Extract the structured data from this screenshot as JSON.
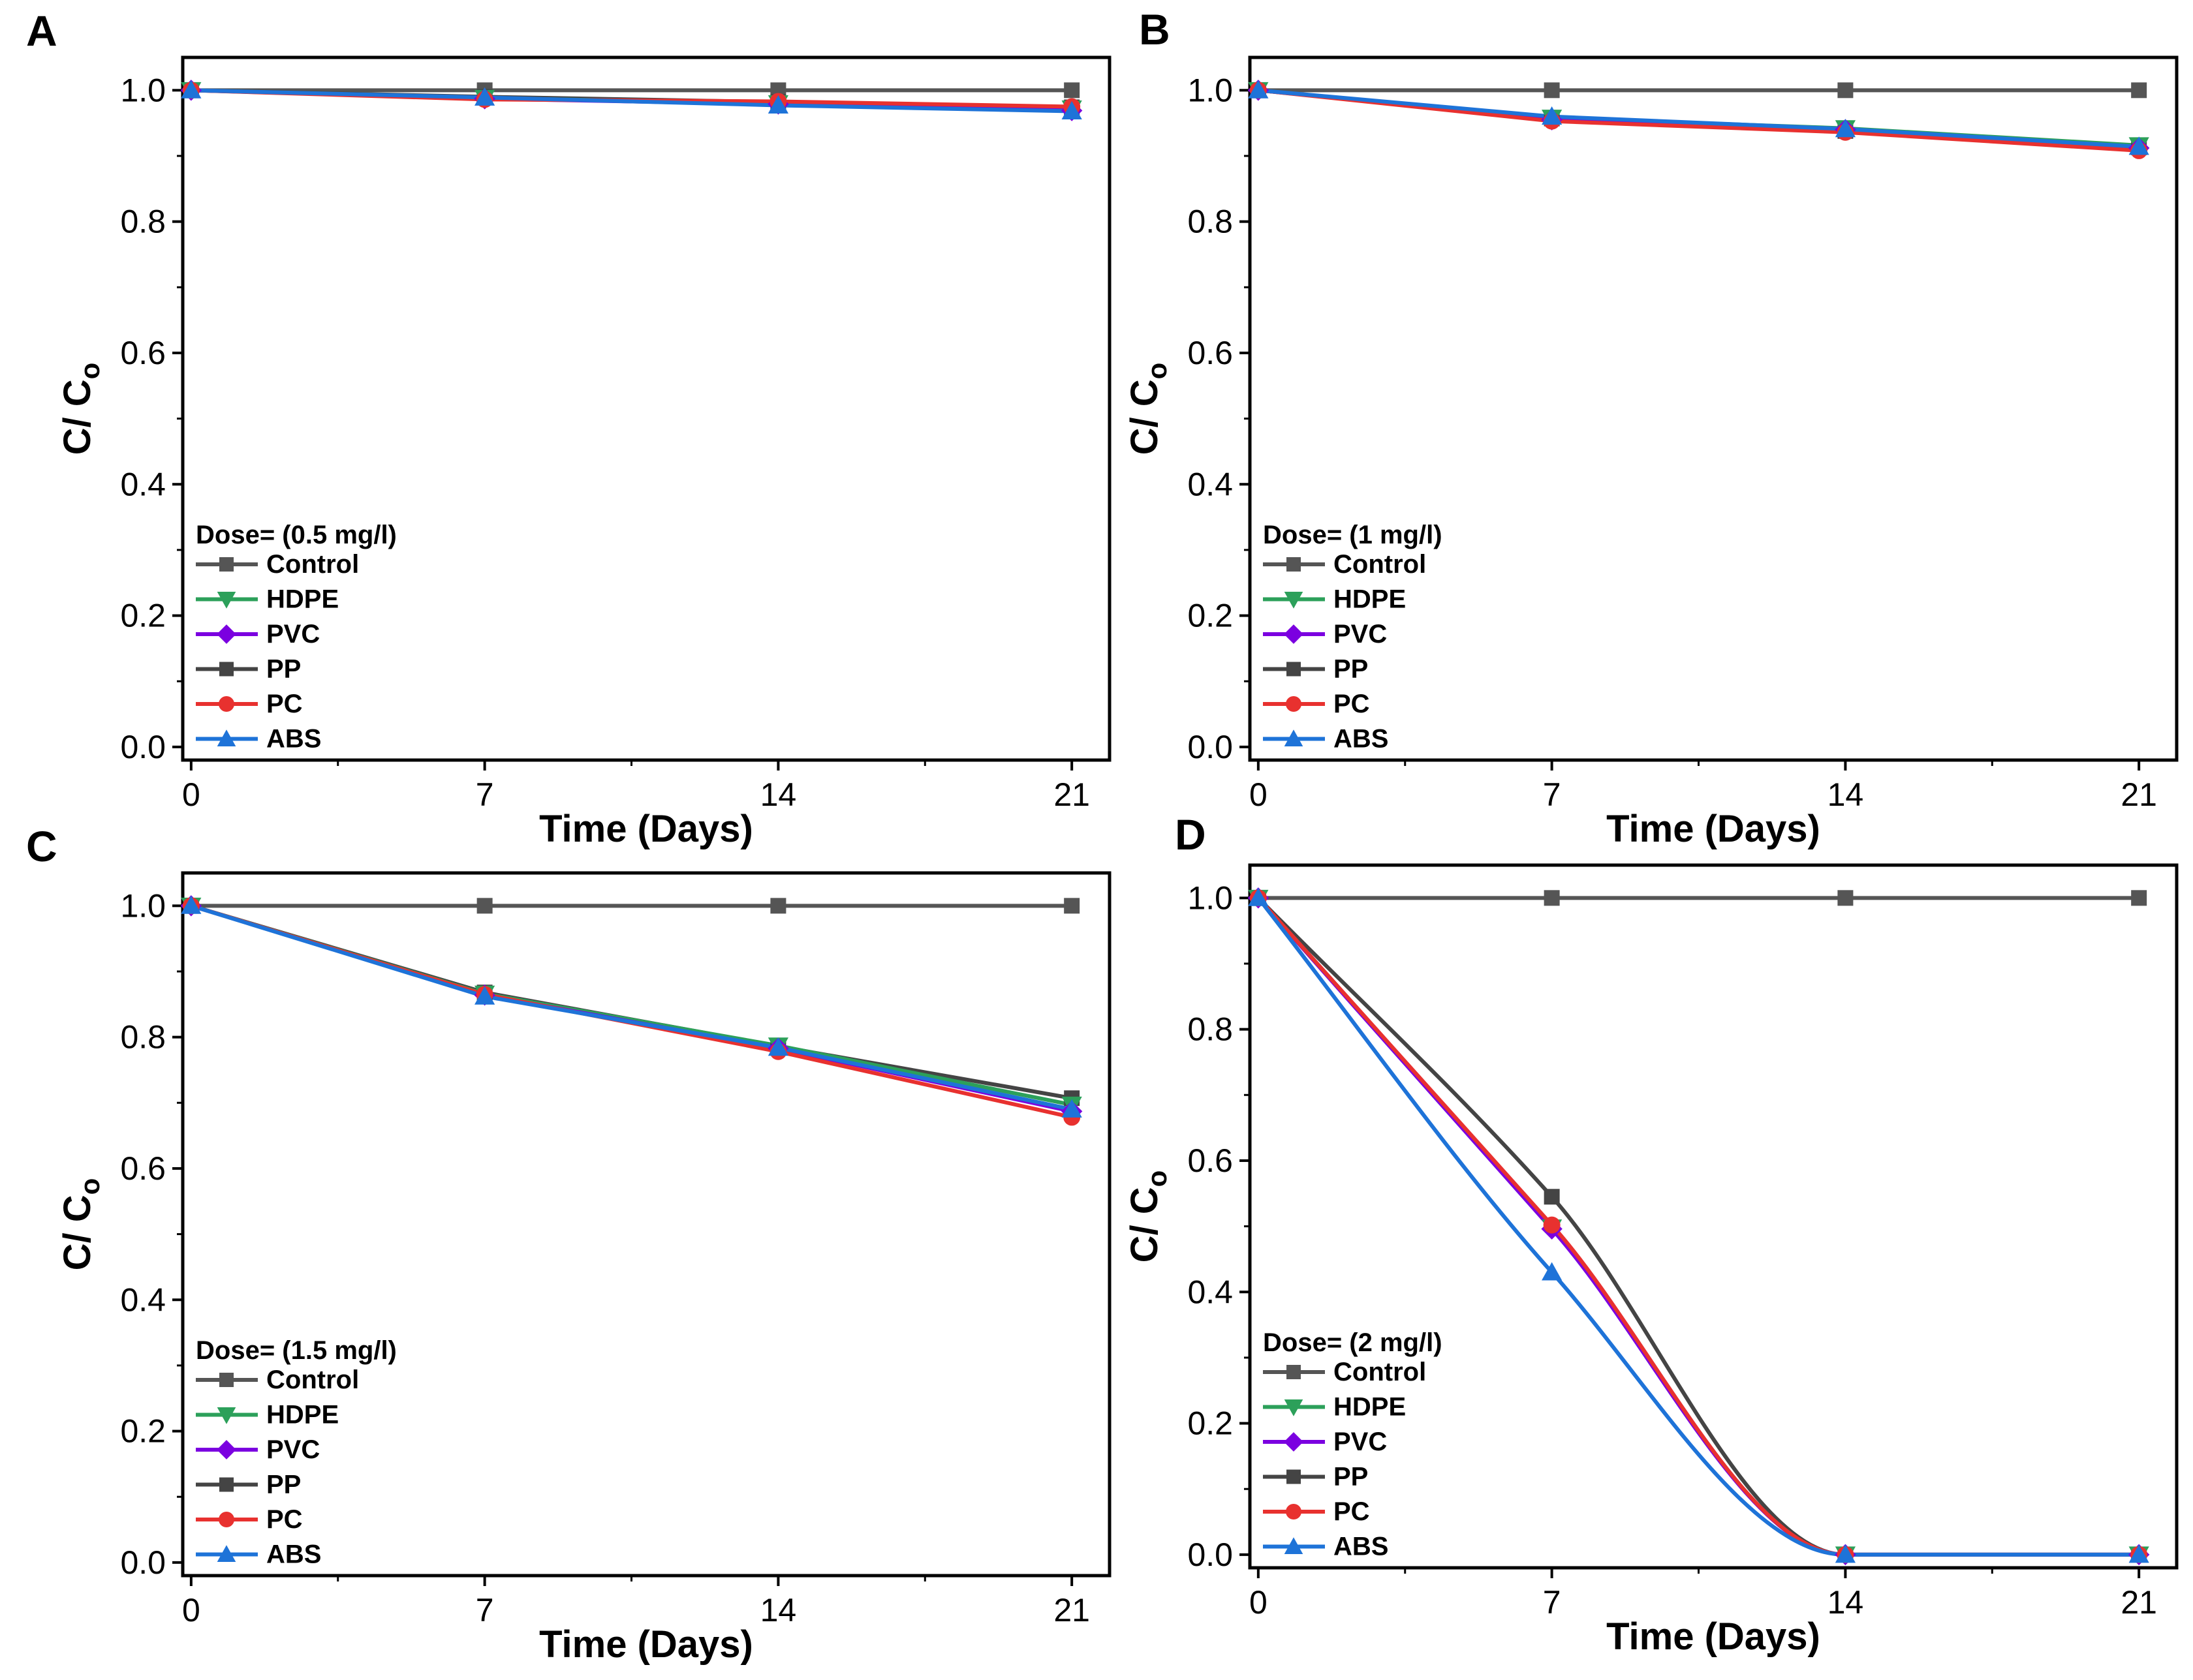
{
  "colors": {
    "Control": "#555555",
    "HDPE": "#2ca05a",
    "PVC": "#7b00e0",
    "PP": "#444444",
    "PC": "#e8312f",
    "ABS": "#1e73d8"
  },
  "series_styles": [
    {
      "name": "Control",
      "marker": "square"
    },
    {
      "name": "HDPE",
      "marker": "triangle-down"
    },
    {
      "name": "PVC",
      "marker": "diamond"
    },
    {
      "name": "PP",
      "marker": "square"
    },
    {
      "name": "PC",
      "marker": "circle"
    },
    {
      "name": "ABS",
      "marker": "triangle-up"
    }
  ],
  "chart_data": [
    {
      "panel": "A",
      "type": "line",
      "xlabel": "Time (Days)",
      "ylabel": "C/ C",
      "ylabel_sub": "o",
      "x": [
        0,
        7,
        14,
        21
      ],
      "xticks": [
        "0",
        "7",
        "14",
        "21"
      ],
      "yticks": [
        "0.0",
        "0.2",
        "0.4",
        "0.6",
        "0.8",
        "1.0"
      ],
      "xlim": [
        -0.2,
        21.9
      ],
      "ylim": [
        -0.02,
        1.05
      ],
      "curve": "linear",
      "legend_title": "Dose= (0.5 mg/l)",
      "series": [
        {
          "name": "Control",
          "values": [
            1.0,
            1.0,
            1.0,
            1.0
          ]
        },
        {
          "name": "HDPE",
          "values": [
            1.0,
            0.988,
            0.98,
            0.972
          ]
        },
        {
          "name": "PVC",
          "values": [
            1.0,
            0.987,
            0.979,
            0.969
          ]
        },
        {
          "name": "PP",
          "values": [
            1.0,
            0.99,
            0.982,
            0.974
          ]
        },
        {
          "name": "PC",
          "values": [
            1.0,
            0.986,
            0.983,
            0.975
          ]
        },
        {
          "name": "ABS",
          "values": [
            1.0,
            0.989,
            0.977,
            0.968
          ]
        }
      ]
    },
    {
      "panel": "B",
      "type": "line",
      "xlabel": "Time (Days)",
      "ylabel": "C/ C",
      "ylabel_sub": "o",
      "x": [
        0,
        7,
        14,
        21
      ],
      "xticks": [
        "0",
        "7",
        "14",
        "21"
      ],
      "yticks": [
        "0.0",
        "0.2",
        "0.4",
        "0.6",
        "0.8",
        "1.0"
      ],
      "xlim": [
        -0.2,
        21.9
      ],
      "ylim": [
        -0.02,
        1.05
      ],
      "curve": "linear",
      "legend_title": "Dose= (1 mg/l)",
      "series": [
        {
          "name": "Control",
          "values": [
            1.0,
            1.0,
            1.0,
            1.0
          ]
        },
        {
          "name": "HDPE",
          "values": [
            1.0,
            0.958,
            0.942,
            0.916
          ]
        },
        {
          "name": "PVC",
          "values": [
            1.0,
            0.955,
            0.94,
            0.912
          ]
        },
        {
          "name": "PP",
          "values": [
            1.0,
            0.957,
            0.938,
            0.913
          ]
        },
        {
          "name": "PC",
          "values": [
            1.0,
            0.953,
            0.936,
            0.908
          ]
        },
        {
          "name": "ABS",
          "values": [
            1.0,
            0.96,
            0.941,
            0.914
          ]
        }
      ]
    },
    {
      "panel": "C",
      "type": "line",
      "xlabel": "Time (Days)",
      "ylabel": "C/ C",
      "ylabel_sub": "o",
      "x": [
        0,
        7,
        14,
        21
      ],
      "xticks": [
        "0",
        "7",
        "14",
        "21"
      ],
      "yticks": [
        "0.0",
        "0.2",
        "0.4",
        "0.6",
        "0.8",
        "1.0"
      ],
      "xlim": [
        -0.2,
        21.9
      ],
      "ylim": [
        -0.02,
        1.05
      ],
      "curve": "linear",
      "legend_title": "Dose= (1.5 mg/l)",
      "series": [
        {
          "name": "Control",
          "values": [
            1.0,
            1.0,
            1.0,
            1.0
          ]
        },
        {
          "name": "HDPE",
          "values": [
            1.0,
            0.866,
            0.787,
            0.697
          ]
        },
        {
          "name": "PVC",
          "values": [
            1.0,
            0.864,
            0.783,
            0.687
          ]
        },
        {
          "name": "PP",
          "values": [
            1.0,
            0.868,
            0.786,
            0.707
          ]
        },
        {
          "name": "PC",
          "values": [
            1.0,
            0.865,
            0.778,
            0.678
          ]
        },
        {
          "name": "ABS",
          "values": [
            1.0,
            0.862,
            0.784,
            0.69
          ]
        }
      ]
    },
    {
      "panel": "D",
      "type": "line",
      "xlabel": "Time (Days)",
      "ylabel": "C/ C",
      "ylabel_sub": "o",
      "x": [
        0,
        7,
        14,
        21
      ],
      "xticks": [
        "0",
        "7",
        "14",
        "21"
      ],
      "yticks": [
        "0.0",
        "0.2",
        "0.4",
        "0.6",
        "0.8",
        "1.0"
      ],
      "xlim": [
        -0.2,
        21.9
      ],
      "ylim": [
        -0.02,
        1.05
      ],
      "curve": "smooth",
      "legend_title": "Dose= (2 mg/l)",
      "series": [
        {
          "name": "Control",
          "values": [
            1.0,
            1.0,
            1.0,
            1.0
          ]
        },
        {
          "name": "HDPE",
          "values": [
            1.0,
            0.498,
            0.0,
            0.0
          ]
        },
        {
          "name": "PVC",
          "values": [
            1.0,
            0.496,
            0.0,
            0.0
          ]
        },
        {
          "name": "PP",
          "values": [
            1.0,
            0.545,
            0.0,
            0.0
          ]
        },
        {
          "name": "PC",
          "values": [
            1.0,
            0.502,
            0.0,
            0.0
          ]
        },
        {
          "name": "ABS",
          "values": [
            1.0,
            0.43,
            0.0,
            0.0
          ]
        }
      ]
    }
  ]
}
